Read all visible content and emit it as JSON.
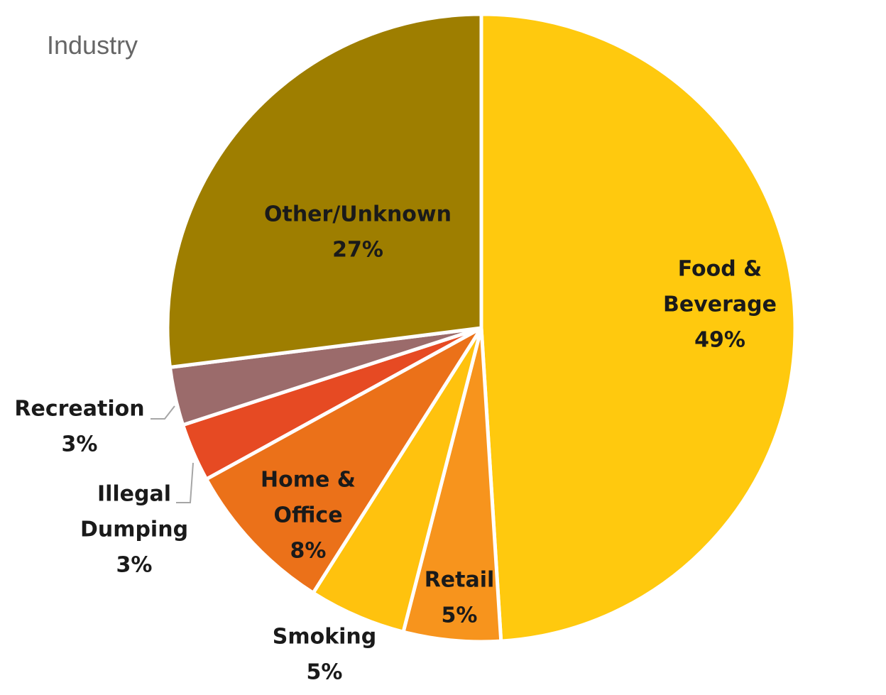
{
  "chart_data": {
    "type": "pie",
    "title": "Industry",
    "start_angle_deg": 0,
    "direction": "clockwise",
    "slices": [
      {
        "label": "Food & Beverage",
        "value": 49,
        "value_label": "49%",
        "color": "#FFC90E"
      },
      {
        "label": "Retail",
        "value": 5,
        "value_label": "5%",
        "color": "#F7941D"
      },
      {
        "label": "Smoking",
        "value": 5,
        "value_label": "5%",
        "color": "#FFC20E"
      },
      {
        "label": "Home & Office",
        "value": 8,
        "value_label": "8%",
        "color": "#EB7119"
      },
      {
        "label": "Illegal Dumping",
        "value": 3,
        "value_label": "3%",
        "color": "#E64A23"
      },
      {
        "label": "Recreation",
        "value": 3,
        "value_label": "3%",
        "color": "#9B6B6B"
      },
      {
        "label": "Other/Unknown",
        "value": 27,
        "value_label": "27%",
        "color": "#9E7E00"
      }
    ],
    "legend": "none",
    "data_labels": "category name and percentage"
  }
}
